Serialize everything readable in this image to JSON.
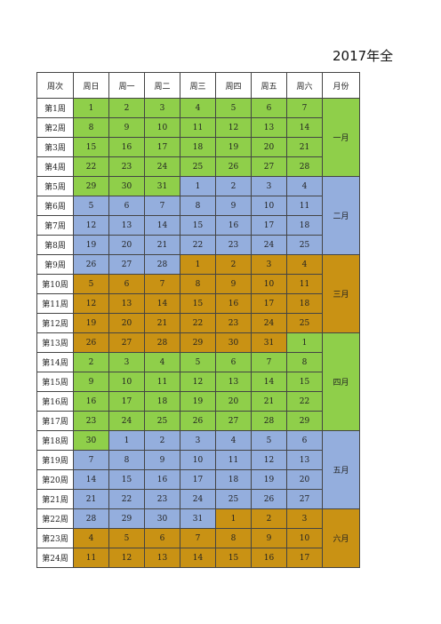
{
  "title": "2017年全",
  "header": [
    "周次",
    "周日",
    "周一",
    "周二",
    "周三",
    "周四",
    "周五",
    "周六",
    "月份"
  ],
  "colors": {
    "g": "#8fcf4a",
    "b": "#94aedd",
    "o": "#c99214"
  },
  "months": [
    {
      "label": "一月",
      "color": "g",
      "rows": 4
    },
    {
      "label": "二月",
      "color": "b",
      "rows": 4
    },
    {
      "label": "三月",
      "color": "o",
      "rows": 4
    },
    {
      "label": "四月",
      "color": "g",
      "rows": 5
    },
    {
      "label": "五月",
      "color": "b",
      "rows": 4
    },
    {
      "label": "六月",
      "color": "o",
      "rows": 3
    }
  ],
  "weeks": [
    {
      "label": "第1周",
      "days": [
        "1",
        "2",
        "3",
        "4",
        "5",
        "6",
        "7"
      ],
      "colors": [
        "g",
        "g",
        "g",
        "g",
        "g",
        "g",
        "g"
      ]
    },
    {
      "label": "第2周",
      "days": [
        "8",
        "9",
        "10",
        "11",
        "12",
        "13",
        "14"
      ],
      "colors": [
        "g",
        "g",
        "g",
        "g",
        "g",
        "g",
        "g"
      ]
    },
    {
      "label": "第3周",
      "days": [
        "15",
        "16",
        "17",
        "18",
        "19",
        "20",
        "21"
      ],
      "colors": [
        "g",
        "g",
        "g",
        "g",
        "g",
        "g",
        "g"
      ]
    },
    {
      "label": "第4周",
      "days": [
        "22",
        "23",
        "24",
        "25",
        "26",
        "27",
        "28"
      ],
      "colors": [
        "g",
        "g",
        "g",
        "g",
        "g",
        "g",
        "g"
      ]
    },
    {
      "label": "第5周",
      "days": [
        "29",
        "30",
        "31",
        "1",
        "2",
        "3",
        "4"
      ],
      "colors": [
        "g",
        "g",
        "g",
        "b",
        "b",
        "b",
        "b"
      ]
    },
    {
      "label": "第6周",
      "days": [
        "5",
        "6",
        "7",
        "8",
        "9",
        "10",
        "11"
      ],
      "colors": [
        "b",
        "b",
        "b",
        "b",
        "b",
        "b",
        "b"
      ]
    },
    {
      "label": "第7周",
      "days": [
        "12",
        "13",
        "14",
        "15",
        "16",
        "17",
        "18"
      ],
      "colors": [
        "b",
        "b",
        "b",
        "b",
        "b",
        "b",
        "b"
      ]
    },
    {
      "label": "第8周",
      "days": [
        "19",
        "20",
        "21",
        "22",
        "23",
        "24",
        "25"
      ],
      "colors": [
        "b",
        "b",
        "b",
        "b",
        "b",
        "b",
        "b"
      ]
    },
    {
      "label": "第9周",
      "days": [
        "26",
        "27",
        "28",
        "1",
        "2",
        "3",
        "4"
      ],
      "colors": [
        "b",
        "b",
        "b",
        "o",
        "o",
        "o",
        "o"
      ]
    },
    {
      "label": "第10周",
      "days": [
        "5",
        "6",
        "7",
        "8",
        "9",
        "10",
        "11"
      ],
      "colors": [
        "o",
        "o",
        "o",
        "o",
        "o",
        "o",
        "o"
      ]
    },
    {
      "label": "第11周",
      "days": [
        "12",
        "13",
        "14",
        "15",
        "16",
        "17",
        "18"
      ],
      "colors": [
        "o",
        "o",
        "o",
        "o",
        "o",
        "o",
        "o"
      ]
    },
    {
      "label": "第12周",
      "days": [
        "19",
        "20",
        "21",
        "22",
        "23",
        "24",
        "25"
      ],
      "colors": [
        "o",
        "o",
        "o",
        "o",
        "o",
        "o",
        "o"
      ]
    },
    {
      "label": "第13周",
      "days": [
        "26",
        "27",
        "28",
        "29",
        "30",
        "31",
        "1"
      ],
      "colors": [
        "o",
        "o",
        "o",
        "o",
        "o",
        "o",
        "g"
      ]
    },
    {
      "label": "第14周",
      "days": [
        "2",
        "3",
        "4",
        "5",
        "6",
        "7",
        "8"
      ],
      "colors": [
        "g",
        "g",
        "g",
        "g",
        "g",
        "g",
        "g"
      ]
    },
    {
      "label": "第15周",
      "days": [
        "9",
        "10",
        "11",
        "12",
        "13",
        "14",
        "15"
      ],
      "colors": [
        "g",
        "g",
        "g",
        "g",
        "g",
        "g",
        "g"
      ]
    },
    {
      "label": "第16周",
      "days": [
        "16",
        "17",
        "18",
        "19",
        "20",
        "21",
        "22"
      ],
      "colors": [
        "g",
        "g",
        "g",
        "g",
        "g",
        "g",
        "g"
      ]
    },
    {
      "label": "第17周",
      "days": [
        "23",
        "24",
        "25",
        "26",
        "27",
        "28",
        "29"
      ],
      "colors": [
        "g",
        "g",
        "g",
        "g",
        "g",
        "g",
        "g"
      ]
    },
    {
      "label": "第18周",
      "days": [
        "30",
        "1",
        "2",
        "3",
        "4",
        "5",
        "6"
      ],
      "colors": [
        "g",
        "b",
        "b",
        "b",
        "b",
        "b",
        "b"
      ]
    },
    {
      "label": "第19周",
      "days": [
        "7",
        "8",
        "9",
        "10",
        "11",
        "12",
        "13"
      ],
      "colors": [
        "b",
        "b",
        "b",
        "b",
        "b",
        "b",
        "b"
      ]
    },
    {
      "label": "第20周",
      "days": [
        "14",
        "15",
        "16",
        "17",
        "18",
        "19",
        "20"
      ],
      "colors": [
        "b",
        "b",
        "b",
        "b",
        "b",
        "b",
        "b"
      ]
    },
    {
      "label": "第21周",
      "days": [
        "21",
        "22",
        "23",
        "24",
        "25",
        "26",
        "27"
      ],
      "colors": [
        "b",
        "b",
        "b",
        "b",
        "b",
        "b",
        "b"
      ]
    },
    {
      "label": "第22周",
      "days": [
        "28",
        "29",
        "30",
        "31",
        "1",
        "2",
        "3"
      ],
      "colors": [
        "b",
        "b",
        "b",
        "b",
        "o",
        "o",
        "o"
      ]
    },
    {
      "label": "第23周",
      "days": [
        "4",
        "5",
        "6",
        "7",
        "8",
        "9",
        "10"
      ],
      "colors": [
        "o",
        "o",
        "o",
        "o",
        "o",
        "o",
        "o"
      ]
    },
    {
      "label": "第24周",
      "days": [
        "11",
        "12",
        "13",
        "14",
        "15",
        "16",
        "17"
      ],
      "colors": [
        "o",
        "o",
        "o",
        "o",
        "o",
        "o",
        "o"
      ]
    }
  ]
}
